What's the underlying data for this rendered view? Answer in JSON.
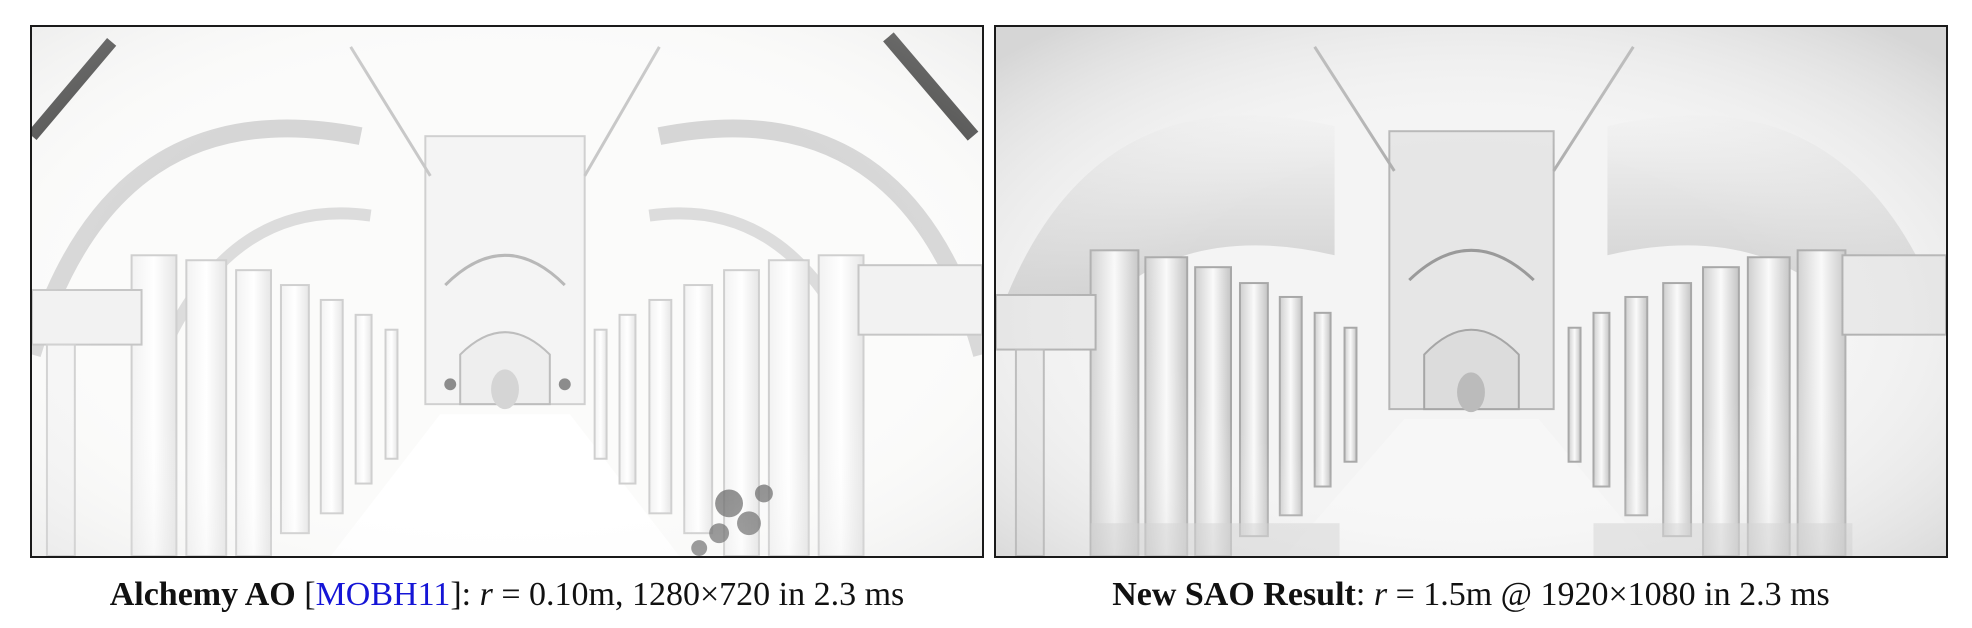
{
  "figure": {
    "left": {
      "image_alt": "Alchemy AO rendering of a colonnaded atrium corridor",
      "caption": {
        "method": "Alchemy AO",
        "bracket_open": " [",
        "citation": "MOBH11",
        "bracket_close": "]: ",
        "var": "r",
        "rest": " = 0.10m, 1280×720 in 2.3 ms"
      }
    },
    "right": {
      "image_alt": "New SAO rendering of a colonnaded atrium corridor",
      "caption": {
        "method": "New SAO Result",
        "sep": ": ",
        "var": "r",
        "rest": " = 1.5m @ 1920×1080 in 2.3 ms"
      }
    },
    "colors": {
      "citation": "#1515d6",
      "frame": "#1a1a1a"
    }
  }
}
